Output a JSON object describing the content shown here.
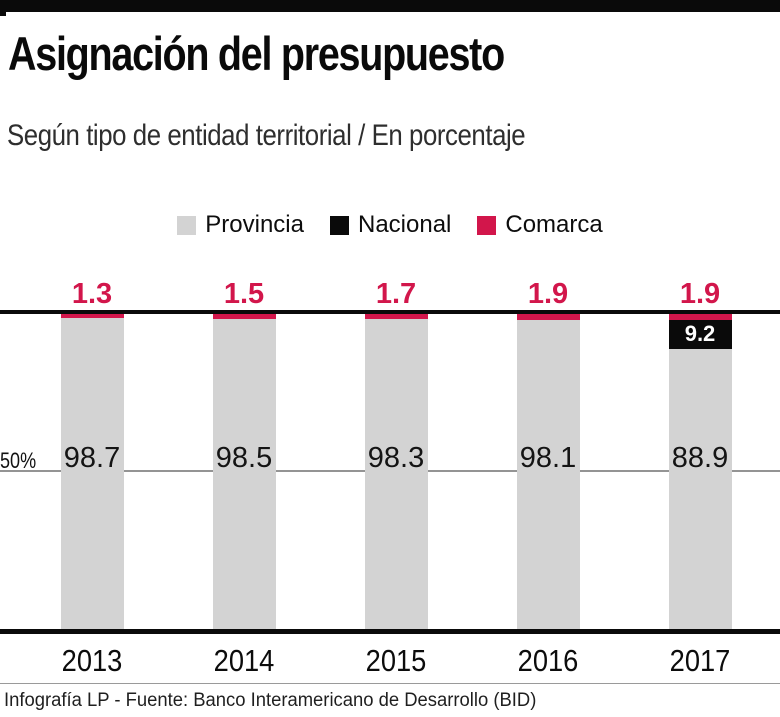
{
  "header": {
    "title": "Asignación del presupuesto",
    "subtitle": "Según tipo de entidad territorial / En porcentaje"
  },
  "legend": {
    "items": [
      {
        "label": "Provincia",
        "color": "#d3d3d3"
      },
      {
        "label": "Nacional",
        "color": "#0a0a0a"
      },
      {
        "label": "Comarca",
        "color": "#d2164b"
      }
    ]
  },
  "footer": {
    "credit": "Infografía LP - Fuente: Banco Interamericano de Desarrollo (BID)"
  },
  "colors": {
    "provincia": "#d3d3d3",
    "nacional": "#0a0a0a",
    "comarca": "#d2164b",
    "axis": "#0a0a0a",
    "gridline": "#949494"
  },
  "chart_data": {
    "type": "bar",
    "stacked": true,
    "orientation": "vertical",
    "title": "Asignación del presupuesto",
    "subtitle": "Según tipo de entidad territorial / En porcentaje",
    "categories": [
      "2013",
      "2014",
      "2015",
      "2016",
      "2017"
    ],
    "series": [
      {
        "name": "Provincia",
        "color": "#d3d3d3",
        "values": [
          98.7,
          98.5,
          98.3,
          98.1,
          88.9
        ],
        "labels": [
          "98.7",
          "98.5",
          "98.3",
          "98.1",
          "88.9"
        ]
      },
      {
        "name": "Nacional",
        "color": "#0a0a0a",
        "values": [
          0,
          0,
          0,
          0,
          9.2
        ],
        "labels": [
          "",
          "",
          "",
          "",
          "9.2"
        ]
      },
      {
        "name": "Comarca",
        "color": "#d2164b",
        "values": [
          1.3,
          1.5,
          1.7,
          1.9,
          1.9
        ],
        "labels": [
          "1.3",
          "1.5",
          "1.7",
          "1.9",
          "1.9"
        ]
      }
    ],
    "ylim": [
      0,
      100
    ],
    "value_unit": "%",
    "gridline": {
      "value": 50,
      "label": "50%"
    },
    "legend_position": "top",
    "top_value_labels_series": "Comarca",
    "top_value_labels_color": "#d2164b"
  }
}
